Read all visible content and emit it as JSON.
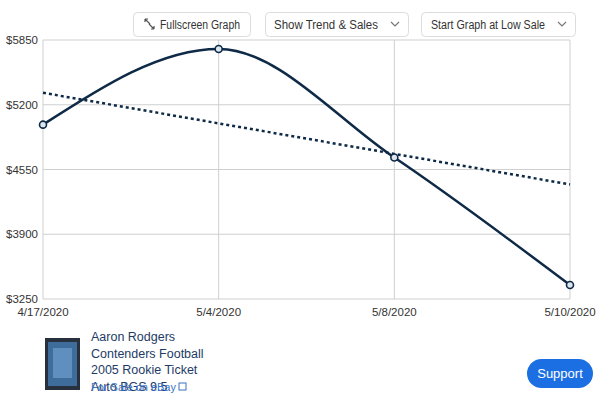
{
  "chart_data": {
    "type": "line",
    "categories": [
      "4/17/2020",
      "5/4/2020",
      "5/8/2020",
      "5/10/2020"
    ],
    "series": [
      {
        "values": [
          5000,
          5760,
          4670,
          3390
        ],
        "color": "#0e2a47",
        "line_style": "solid",
        "marker": "circle"
      },
      {
        "values": [
          5320,
          5013,
          4707,
          4400
        ],
        "color": "#0e2a47",
        "line_style": "dotted",
        "marker": "none"
      }
    ],
    "ylim": [
      3250,
      5850
    ],
    "yticks": [
      {
        "value": 3250,
        "label": "$3250"
      },
      {
        "value": 3900,
        "label": "$3900"
      },
      {
        "value": 4550,
        "label": "$4550"
      },
      {
        "value": 5200,
        "label": "$5200"
      },
      {
        "value": 5850,
        "label": "$5850"
      }
    ],
    "grid": true
  },
  "controls": {
    "fullscreen": "Fullscreen Graph",
    "trend": "Show Trend & Sales",
    "start": "Start Graph at Low Sale"
  },
  "listing": {
    "title_lines": [
      "Aaron Rodgers",
      "Contenders Football",
      "2005 Rookie Ticket",
      "Auto BGS 9.5"
    ],
    "link": "For Sale on eBay"
  },
  "support": "Support"
}
